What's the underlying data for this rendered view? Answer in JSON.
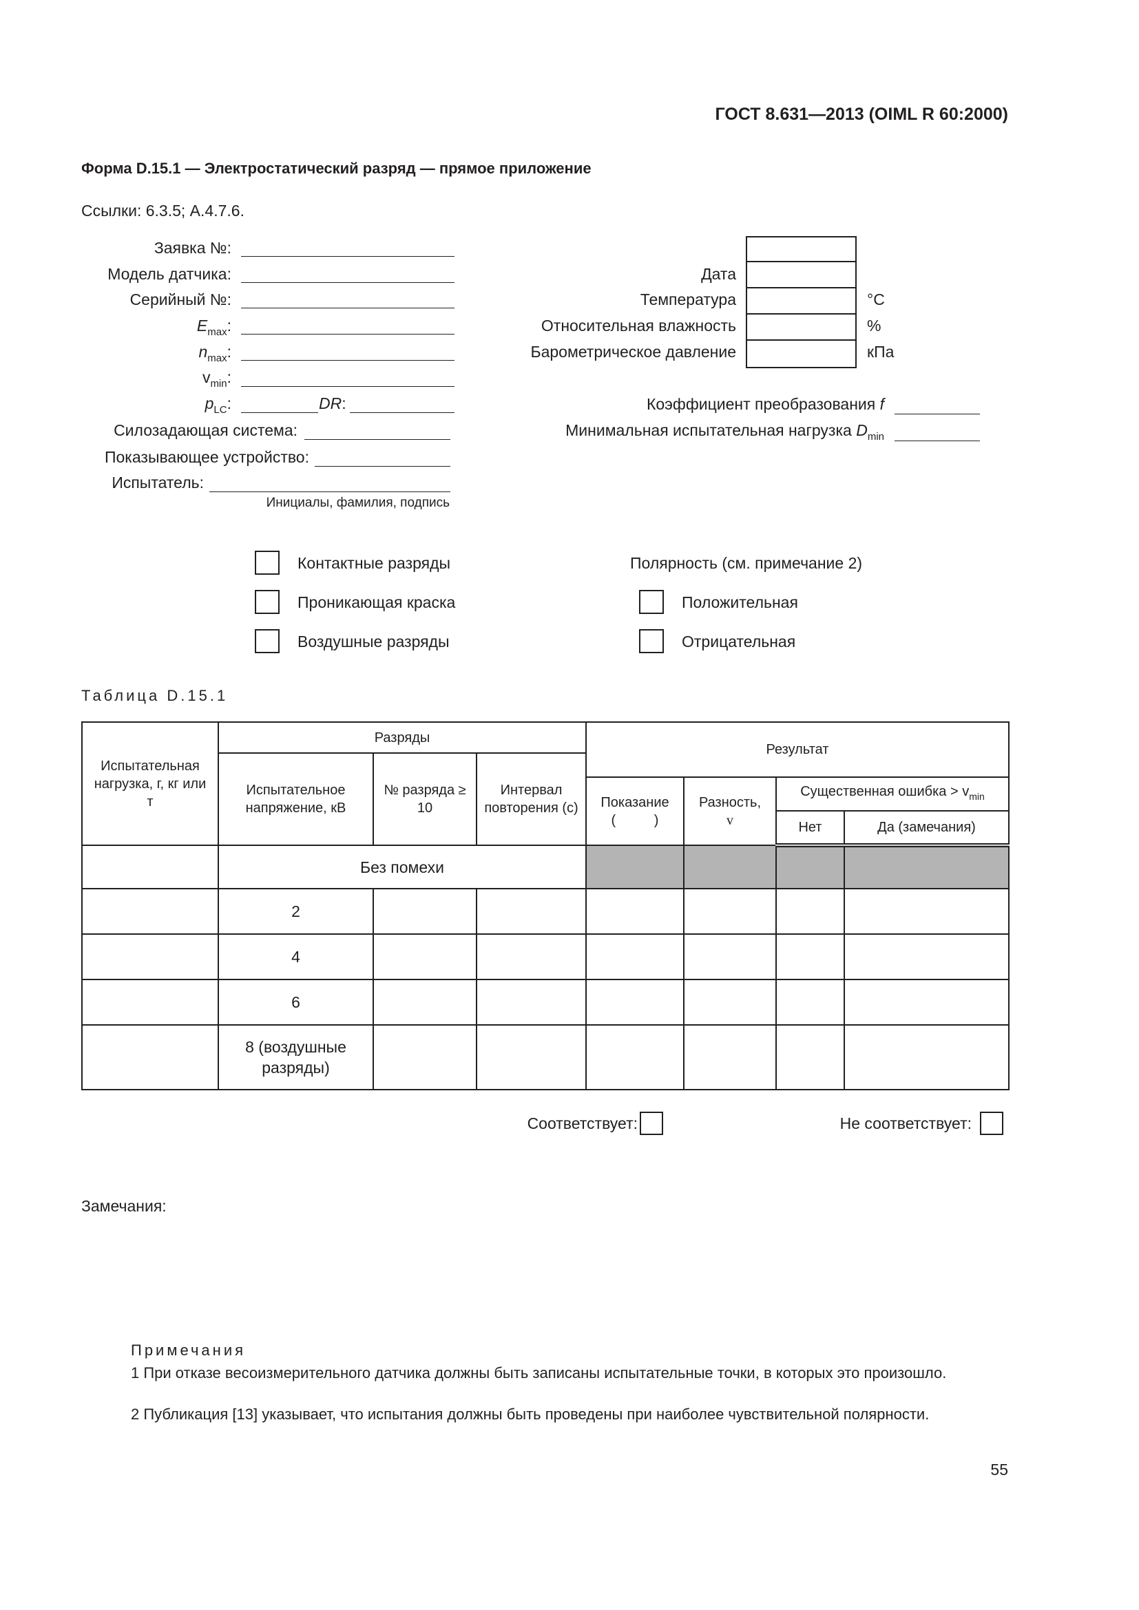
{
  "header": {
    "standard": "ГОСТ 8.631—2013 (OIML R 60:2000)"
  },
  "form": {
    "title": "Форма D.15.1 — Электростатический разряд — прямое приложение",
    "references": "Ссылки: 6.3.5; A.4.7.6."
  },
  "fields": {
    "application": "Заявка №:",
    "sensor_model": "Модель датчика:",
    "serial": "Серийный №:",
    "emax": "E",
    "emax_sub": "max",
    "nmax": "n",
    "nmax_sub": "max",
    "vmin": "v",
    "vmin_sub": "min",
    "plc": "p",
    "plc_sub": "LC",
    "dr": "DR",
    "colon": ":",
    "force_system": "Силозадающая система:",
    "indicator": "Показывающее устройство:",
    "tester": "Испытатель:",
    "tester_caption": "Инициалы, фамилия, подпись"
  },
  "conditions": {
    "date": "Дата",
    "temperature": "Температура",
    "temperature_unit": "°C",
    "humidity": "Относительная влажность",
    "humidity_unit": "%",
    "pressure": "Барометрическое давление",
    "pressure_unit": "кПа",
    "conversion": "Коэффициент преобразования",
    "conversion_sym": "f",
    "min_load": "Минимальная испытательная нагрузка",
    "min_load_sym": "D",
    "min_load_sub": "min"
  },
  "options": {
    "contact": "Контактные разряды",
    "penetrating": "Проникающая краска",
    "air": "Воздушные разряды",
    "polarity_title": "Полярность (см. примечание 2)",
    "positive": "Положительная",
    "negative": "Отрицательная"
  },
  "table": {
    "caption": "Таблица D.15.1",
    "h_load": "Испытательная нагрузка, г, кг или т",
    "h_discharges": "Разряды",
    "h_result": "Результат",
    "h_voltage": "Испытательное напряжение, кВ",
    "h_count": "№ разряда ≥ 10",
    "h_interval": "Интервал повторения (с)",
    "h_reading": "Показание",
    "h_reading_unit": "(          )",
    "h_diff": "Разность,",
    "h_diff_sym": "v",
    "h_err": "Существенная ошибка > v",
    "h_err_sub": "min",
    "h_no": "Нет",
    "h_yes": "Да (замечания)",
    "no_interference": "Без помехи",
    "rows": [
      "2",
      "4",
      "6",
      "8 (воздушные разряды)"
    ]
  },
  "verdict": {
    "pass": "Соответствует:",
    "fail": "Не соответствует:"
  },
  "remarks": "Замечания:",
  "notes": {
    "title": "Примечания",
    "n1": "1 При отказе весоизмерительного датчика должны быть записаны испытательные точки, в которых это произошло.",
    "n2": "2 Публикация [13] указывает, что испытания должны быть проведены при наиболее чувствительной полярности."
  },
  "page_number": "55"
}
